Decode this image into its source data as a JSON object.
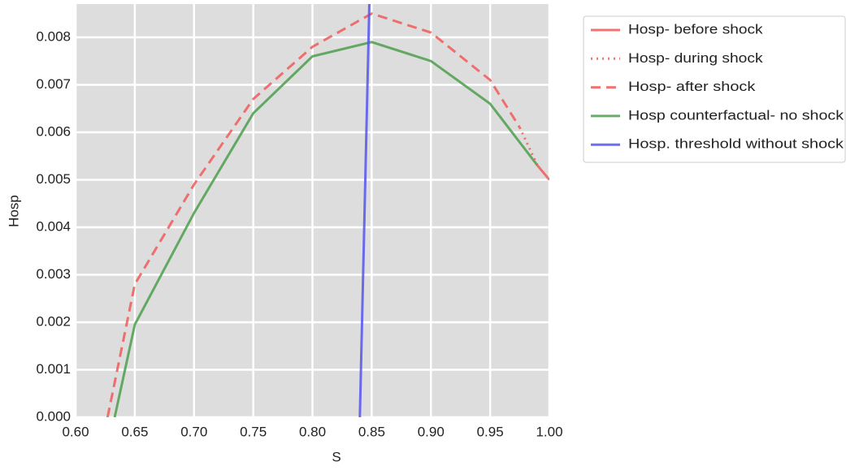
{
  "chart_data": {
    "type": "line",
    "x_label": "S",
    "y_label": "Hosp",
    "xlim": [
      0.6,
      1.0
    ],
    "ylim": [
      0,
      0.0087
    ],
    "xticks": [
      {
        "value": 0.6,
        "label": "0.60"
      },
      0.65,
      {
        "value": 0.7,
        "label": "0.70"
      },
      0.75,
      {
        "value": 0.8,
        "label": "0.80"
      },
      0.85,
      {
        "value": 0.9,
        "label": "0.90"
      },
      0.95,
      {
        "value": 1.0,
        "label": "1.00"
      }
    ],
    "yticks": [
      {
        "value": 0,
        "label": "0.000"
      },
      0.001,
      0.002,
      0.003,
      0.004,
      0.005,
      0.006,
      0.007,
      0.008
    ],
    "grid": true,
    "legend": "outside-right",
    "series": [
      {
        "name": "Hosp- before shock",
        "color": "#f15a5a",
        "linestyle": "solid",
        "x": [
          0.99,
          1.0
        ],
        "values": [
          0.0053,
          0.005
        ]
      },
      {
        "name": "Hosp- during shock",
        "color": "#f15a5a",
        "linestyle": "dotted",
        "x": [
          0.975,
          0.99
        ],
        "values": [
          0.0061,
          0.0053
        ]
      },
      {
        "name": "Hosp- after shock",
        "color": "#f15a5a",
        "linestyle": "dashed",
        "x": [
          0.627,
          0.65,
          0.7,
          0.75,
          0.8,
          0.85,
          0.9,
          0.95,
          0.975
        ],
        "values": [
          0,
          0.0028,
          0.0049,
          0.0067,
          0.0078,
          0.0085,
          0.0081,
          0.0071,
          0.0061
        ]
      },
      {
        "name": "Hosp counterfactual- no shock",
        "color": "#4c9f4c",
        "linestyle": "solid",
        "x": [
          0.633,
          0.65,
          0.7,
          0.75,
          0.8,
          0.85,
          0.9,
          0.95,
          0.99
        ],
        "values": [
          0,
          0.00195,
          0.0043,
          0.0064,
          0.0076,
          0.0079,
          0.0075,
          0.0066,
          0.0053
        ]
      },
      {
        "name": "Hosp. threshold without shock",
        "color": "#5555ee",
        "linestyle": "solid",
        "x": [
          0.84,
          0.848
        ],
        "values": [
          0,
          0.0087
        ]
      }
    ]
  }
}
